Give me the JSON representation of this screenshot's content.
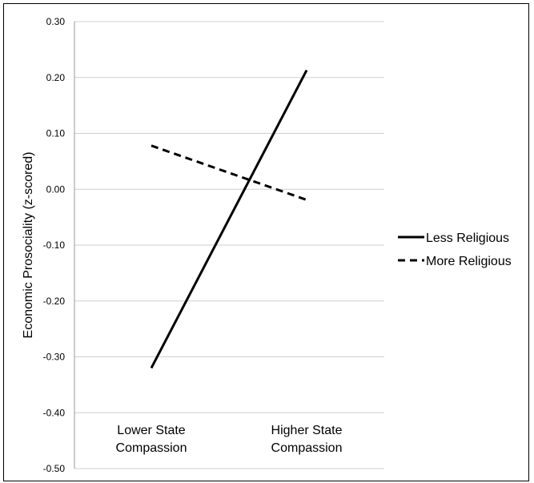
{
  "chart_data": {
    "type": "line",
    "title": "",
    "xlabel": "",
    "ylabel": "Economic Prosociality (z-scored)",
    "categories": [
      [
        "Lower State",
        "Compassion"
      ],
      [
        "Higher State",
        "Compassion"
      ]
    ],
    "ylim": [
      -0.5,
      0.3
    ],
    "yticks": [
      "0.30",
      "0.20",
      "0.10",
      "0.00",
      "-0.10",
      "-0.20",
      "-0.30",
      "-0.40",
      "-0.50"
    ],
    "grid": true,
    "legend_position": "right",
    "series": [
      {
        "name": "Less Religious",
        "style": "solid",
        "values": [
          -0.32,
          0.213
        ]
      },
      {
        "name": "More Religious",
        "style": "dashed",
        "values": [
          0.078,
          -0.019
        ]
      }
    ]
  },
  "colors": {
    "line": "#000000",
    "grid": "#cfcfcf",
    "axis": "#9a9a9a"
  }
}
